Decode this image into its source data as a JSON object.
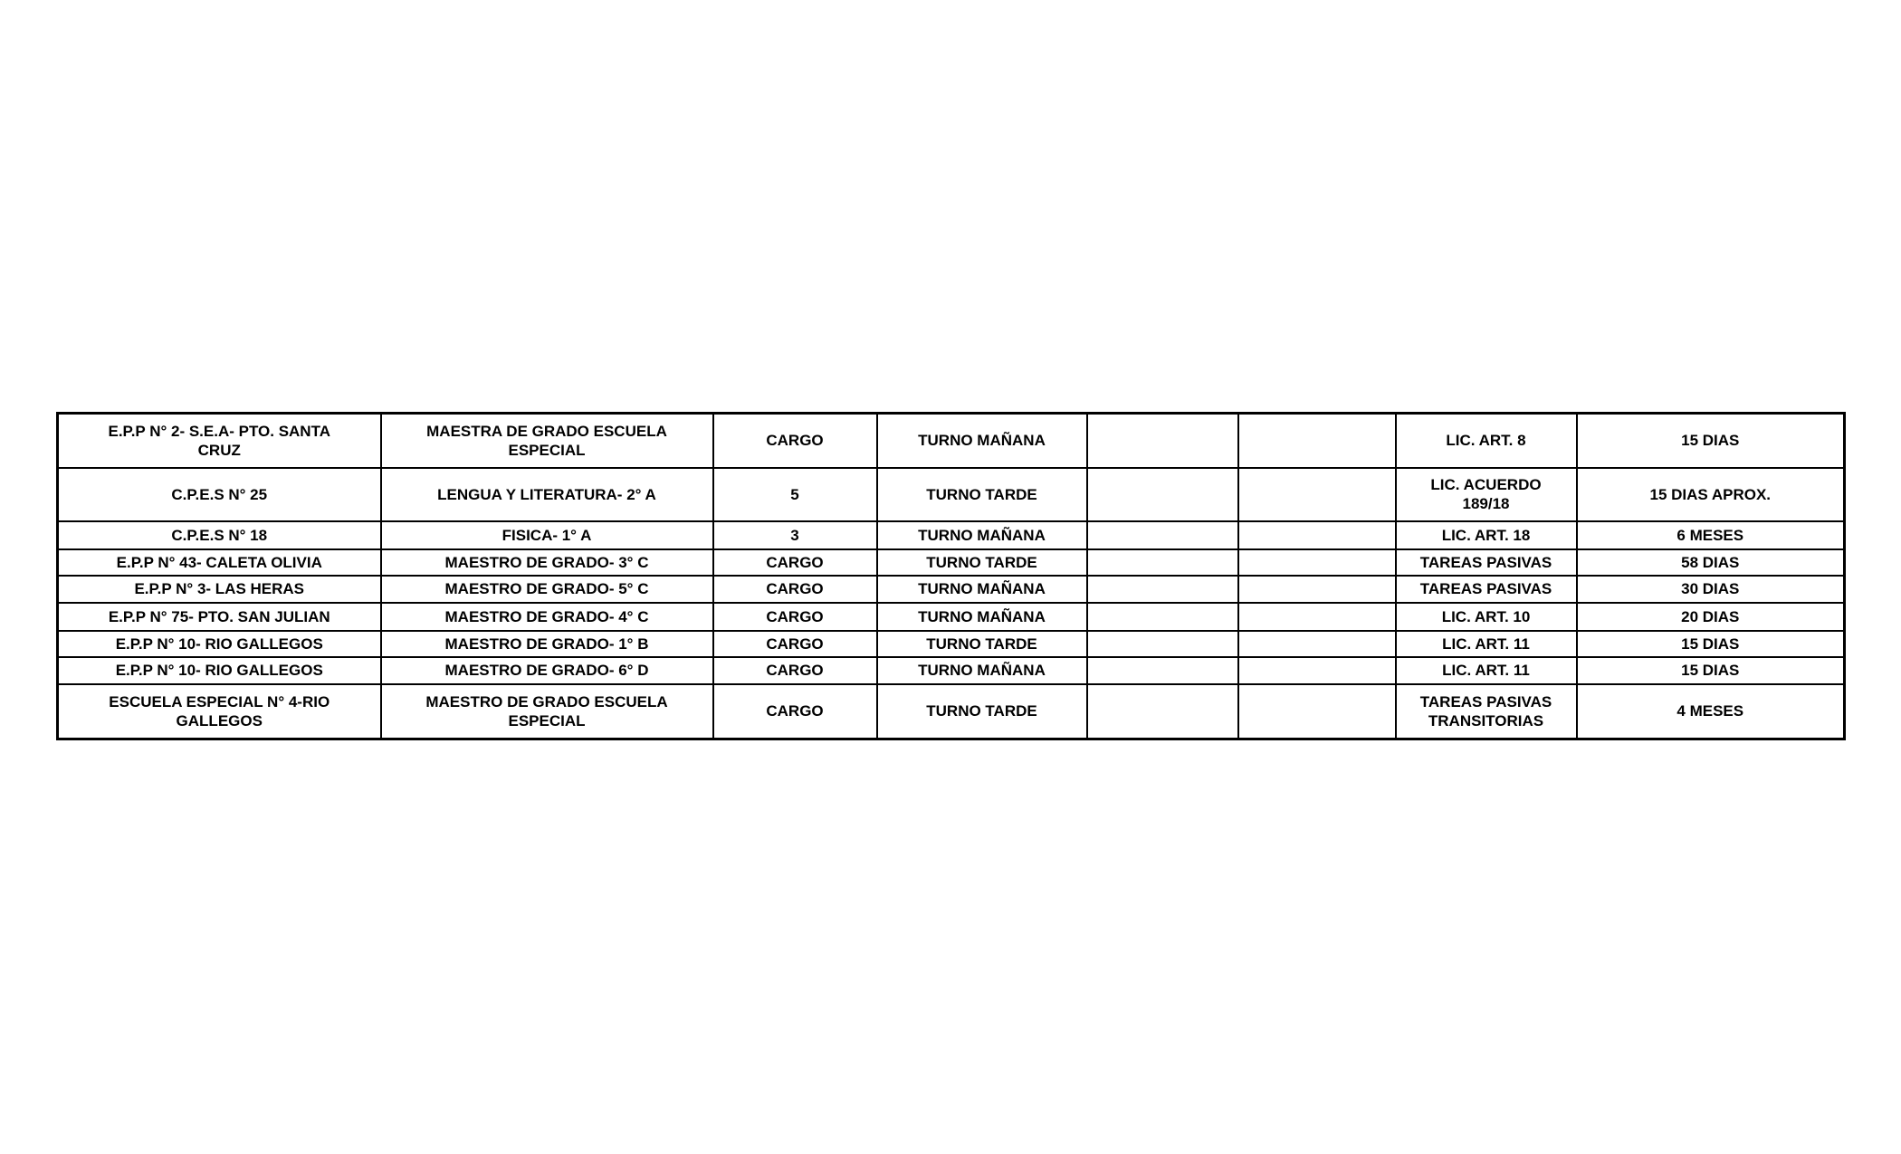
{
  "page": {
    "background_color": "#ffffff",
    "text_color": "#000000",
    "border_color": "#000000"
  },
  "table": {
    "description": "licencias-docentes-table",
    "column_count": 8,
    "rows": [
      {
        "cells": [
          "E.P.P N° 2- S.E.A- PTO. SANTA\nCRUZ",
          "MAESTRA DE GRADO ESCUELA\nESPECIAL",
          "CARGO",
          "TURNO MAÑANA",
          "",
          "",
          "LIC. ART. 8",
          "15 DIAS"
        ]
      },
      {
        "cells": [
          "C.P.E.S N° 25",
          "LENGUA Y LITERATURA- 2° A",
          "5",
          "TURNO TARDE",
          "",
          "",
          "LIC. ACUERDO\n189/18",
          "15 DIAS APROX."
        ]
      },
      {
        "cells": [
          "C.P.E.S N° 18",
          "FISICA- 1° A",
          "3",
          "TURNO MAÑANA",
          "",
          "",
          "LIC. ART. 18",
          "6 MESES"
        ]
      },
      {
        "cells": [
          "E.P.P N° 43- CALETA OLIVIA",
          "MAESTRO DE GRADO- 3° C",
          "CARGO",
          "TURNO TARDE",
          "",
          "",
          "TAREAS PASIVAS",
          "58 DIAS"
        ]
      },
      {
        "cells": [
          "E.P.P N° 3- LAS HERAS",
          "MAESTRO DE GRADO- 5° C",
          "CARGO",
          "TURNO MAÑANA",
          "",
          "",
          "TAREAS PASIVAS",
          "30 DIAS"
        ]
      },
      {
        "cells": [
          "E.P.P N° 75- PTO. SAN JULIAN",
          "MAESTRO DE GRADO- 4° C",
          "CARGO",
          "TURNO MAÑANA",
          "",
          "",
          "LIC. ART. 10",
          "20 DIAS"
        ]
      },
      {
        "cells": [
          "E.P.P N° 10- RIO GALLEGOS",
          "MAESTRO DE GRADO- 1° B",
          "CARGO",
          "TURNO TARDE",
          "",
          "",
          "LIC. ART. 11",
          "15 DIAS"
        ]
      },
      {
        "cells": [
          "E.P.P N° 10- RIO GALLEGOS",
          "MAESTRO DE GRADO- 6° D",
          "CARGO",
          "TURNO MAÑANA",
          "",
          "",
          "LIC. ART. 11",
          "15 DIAS"
        ]
      },
      {
        "cells": [
          "ESCUELA ESPECIAL N° 4-RIO\nGALLEGOS",
          "MAESTRO DE GRADO ESCUELA\nESPECIAL",
          "CARGO",
          "TURNO TARDE",
          "",
          "",
          "TAREAS PASIVAS\nTRANSITORIAS",
          "4 MESES"
        ]
      }
    ]
  }
}
